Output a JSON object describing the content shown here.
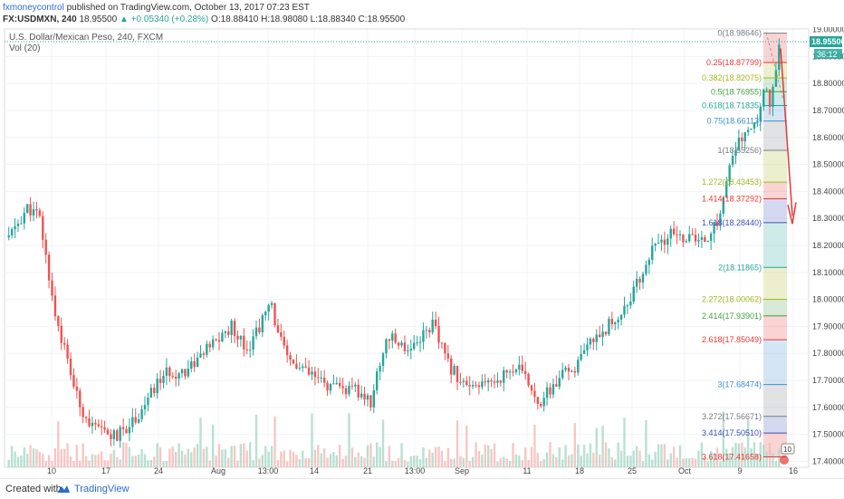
{
  "header": {
    "author": "fxmoneycontrol",
    "published": "published on TradingView.com, October 13, 2017 07:23 EST",
    "symbol": "FX:USDMXN, 240",
    "last": "18.95500",
    "change": "▲ +0.05340 (+0.28%)",
    "o": "O:18.88410",
    "h": "H:18.98080",
    "l": "L:18.88340",
    "c": "C:18.95500"
  },
  "legend": {
    "instrument": "U.S. Dollar/Mexican Peso, 240, FXCM",
    "indicator": "Vol (20)"
  },
  "footer": {
    "created_with": "Created with",
    "brand": "TradingView"
  },
  "colors": {
    "up": "#26a69a",
    "down": "#ef5350",
    "arrow": "#e53935",
    "price_tag": "#26a69a"
  },
  "chart_data": {
    "type": "candlestick",
    "title": "U.S. Dollar/Mexican Peso, 240, FXCM",
    "ylim": [
      17.35,
      19.02
    ],
    "y_ticks": [
      "19.00000",
      "18.90000",
      "18.80000",
      "18.70000",
      "18.60000",
      "18.50000",
      "18.40000",
      "18.30000",
      "18.20000",
      "18.10000",
      "18.00000",
      "17.90000",
      "17.80000",
      "17.70000",
      "17.60000",
      "17.50000",
      "17.40000"
    ],
    "x_ticks": [
      "10",
      "17",
      "24",
      "Aug",
      "13:00",
      "14",
      "21",
      "13:00",
      "Sep",
      "11",
      "18",
      "25",
      "Oct",
      "9",
      "16"
    ],
    "current_price": {
      "label": "18.95500",
      "value": 18.955
    },
    "countdown": "36:12",
    "close_path": [
      [
        0,
        18.23
      ],
      [
        0.025,
        18.34
      ],
      [
        0.04,
        18.3
      ],
      [
        0.06,
        17.95
      ],
      [
        0.09,
        17.62
      ],
      [
        0.11,
        17.52
      ],
      [
        0.14,
        17.49
      ],
      [
        0.17,
        17.58
      ],
      [
        0.2,
        17.72
      ],
      [
        0.23,
        17.74
      ],
      [
        0.26,
        17.82
      ],
      [
        0.29,
        17.9
      ],
      [
        0.31,
        17.82
      ],
      [
        0.34,
        17.98
      ],
      [
        0.36,
        17.78
      ],
      [
        0.39,
        17.72
      ],
      [
        0.42,
        17.67
      ],
      [
        0.45,
        17.66
      ],
      [
        0.47,
        17.62
      ],
      [
        0.49,
        17.86
      ],
      [
        0.52,
        17.82
      ],
      [
        0.55,
        17.91
      ],
      [
        0.57,
        17.76
      ],
      [
        0.6,
        17.66
      ],
      [
        0.63,
        17.7
      ],
      [
        0.66,
        17.75
      ],
      [
        0.69,
        17.62
      ],
      [
        0.72,
        17.72
      ],
      [
        0.74,
        17.76
      ],
      [
        0.76,
        17.86
      ],
      [
        0.79,
        17.93
      ],
      [
        0.81,
        18.02
      ],
      [
        0.835,
        18.18
      ],
      [
        0.86,
        18.24
      ],
      [
        0.88,
        18.23
      ],
      [
        0.9,
        18.21
      ],
      [
        0.92,
        18.28
      ],
      [
        0.935,
        18.48
      ],
      [
        0.95,
        18.6
      ],
      [
        0.97,
        18.64
      ],
      [
        0.98,
        18.79
      ],
      [
        0.99,
        18.72
      ],
      [
        1.0,
        18.955
      ]
    ],
    "fibonacci": [
      {
        "level": "0",
        "price": 18.98646,
        "label": "0(18.98646)",
        "color": "#787b86"
      },
      {
        "level": "0.25",
        "price": 18.87799,
        "label": "0.25(18.87799)",
        "color": "#e53935"
      },
      {
        "level": "0.382",
        "price": 18.82075,
        "label": "0.382(18.82075)",
        "color": "#a4b81e"
      },
      {
        "level": "0.5",
        "price": 18.76955,
        "label": "0.5(18.76955)",
        "color": "#43a047"
      },
      {
        "level": "0.618",
        "price": 18.71835,
        "label": "0.618(18.71835)",
        "color": "#26a69a"
      },
      {
        "level": "0.75",
        "price": 18.66113,
        "label": "0.75(18.66113)",
        "color": "#3d8fce"
      },
      {
        "level": "1",
        "price": 18.55256,
        "label": "1(18.55256)",
        "color": "#787b86"
      },
      {
        "level": "1.272",
        "price": 18.43453,
        "label": "1.272(18.43453)",
        "color": "#a4b81e"
      },
      {
        "level": "1.414",
        "price": 18.37292,
        "label": "1.414(18.37292)",
        "color": "#e53935"
      },
      {
        "level": "1.618",
        "price": 18.2844,
        "label": "1.618(18.28440)",
        "color": "#3f51b5"
      },
      {
        "level": "2",
        "price": 18.11865,
        "label": "2(18.11865)",
        "color": "#26a69a"
      },
      {
        "level": "2.272",
        "price": 18.00062,
        "label": "2.272(18.00062)",
        "color": "#a4b81e"
      },
      {
        "level": "2.414",
        "price": 17.93901,
        "label": "2.414(17.93901)",
        "color": "#43a047"
      },
      {
        "level": "2.618",
        "price": 17.85049,
        "label": "2.618(17.85049)",
        "color": "#e53935"
      },
      {
        "level": "3",
        "price": 17.68474,
        "label": "3(17.68474)",
        "color": "#3d8fce"
      },
      {
        "level": "3.272",
        "price": 17.56671,
        "label": "3.272(17.56671)",
        "color": "#787b86"
      },
      {
        "level": "3.414",
        "price": 17.5051,
        "label": "3.414(17.50510)",
        "color": "#3f51b5"
      },
      {
        "level": "3.618",
        "price": 17.41658,
        "label": "3.618(17.41658)",
        "color": "#e53935"
      }
    ],
    "volume_marker": "10"
  }
}
